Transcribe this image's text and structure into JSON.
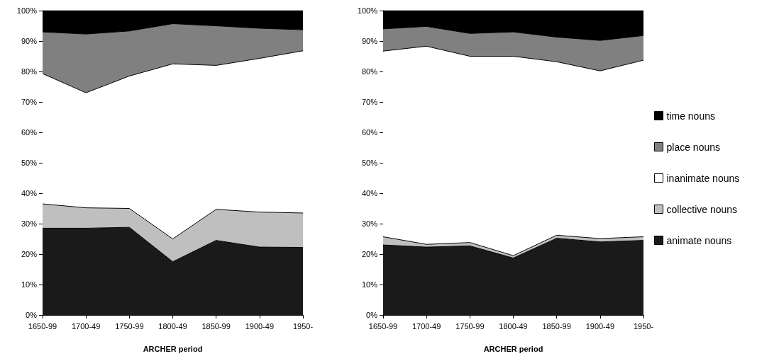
{
  "chart_data": [
    {
      "type": "area",
      "stacked": true,
      "xlabel": "ARCHER period",
      "categories": [
        "1650-99",
        "1700-49",
        "1750-99",
        "1800-49",
        "1850-99",
        "1900-49",
        "1950-"
      ],
      "ylim": [
        0,
        100
      ],
      "yticks": [
        {
          "value": 0,
          "label": "0%"
        },
        {
          "value": 10,
          "label": "10%"
        },
        {
          "value": 20,
          "label": "20%"
        },
        {
          "value": 30,
          "label": "30%"
        },
        {
          "value": 40,
          "label": "40%"
        },
        {
          "value": 50,
          "label": "50%"
        },
        {
          "value": 60,
          "label": "60%"
        },
        {
          "value": 70,
          "label": "70%"
        },
        {
          "value": 80,
          "label": "80%"
        },
        {
          "value": 90,
          "label": "90%"
        },
        {
          "value": 100,
          "label": "100%"
        }
      ],
      "grid": false,
      "legend": false,
      "series": [
        {
          "color": "#1a1a1a",
          "values": [
            28.5,
            28.5,
            28.8,
            17.5,
            24.5,
            22.3,
            22.2
          ]
        },
        {
          "color": "#bfbfbf",
          "values": [
            8.0,
            6.7,
            6.2,
            7.5,
            10.2,
            11.5,
            11.3
          ]
        },
        {
          "color": "#ffffff",
          "values": [
            42.8,
            37.8,
            43.5,
            57.5,
            47.3,
            50.5,
            53.3
          ]
        },
        {
          "color": "#808080",
          "values": [
            13.7,
            19.3,
            14.8,
            13.2,
            13.0,
            9.9,
            6.9
          ]
        },
        {
          "color": "#000000",
          "values": [
            7.0,
            7.7,
            6.7,
            4.3,
            5.0,
            5.8,
            6.3
          ]
        }
      ]
    },
    {
      "type": "area",
      "stacked": true,
      "xlabel": "ARCHER period",
      "categories": [
        "1650-99",
        "1700-49",
        "1750-99",
        "1800-49",
        "1850-99",
        "1900-49",
        "1950-"
      ],
      "ylim": [
        0,
        100
      ],
      "yticks": [
        {
          "value": 0,
          "label": "0%"
        },
        {
          "value": 10,
          "label": "10%"
        },
        {
          "value": 20,
          "label": "20%"
        },
        {
          "value": 30,
          "label": "30%"
        },
        {
          "value": 40,
          "label": "40%"
        },
        {
          "value": 50,
          "label": "50%"
        },
        {
          "value": 60,
          "label": "60%"
        },
        {
          "value": 70,
          "label": "70%"
        },
        {
          "value": 80,
          "label": "80%"
        },
        {
          "value": 90,
          "label": "90%"
        },
        {
          "value": 100,
          "label": "100%"
        }
      ],
      "grid": false,
      "legend": "right",
      "series": [
        {
          "name": "animate nouns",
          "color": "#1a1a1a",
          "values": [
            23.0,
            22.3,
            22.7,
            18.7,
            25.2,
            24.0,
            24.5
          ]
        },
        {
          "name": "collective nouns",
          "color": "#bfbfbf",
          "values": [
            2.7,
            0.9,
            1.1,
            0.8,
            1.0,
            1.1,
            1.2
          ]
        },
        {
          "name": "inanimate nouns",
          "color": "#ffffff",
          "values": [
            61.0,
            65.1,
            61.2,
            65.5,
            57.0,
            55.1,
            58.0
          ]
        },
        {
          "name": "place nouns",
          "color": "#808080",
          "values": [
            7.3,
            6.5,
            7.5,
            8.0,
            8.1,
            10.0,
            8.1
          ]
        },
        {
          "name": "time nouns",
          "color": "#000000",
          "values": [
            6.0,
            5.2,
            7.5,
            7.0,
            8.7,
            9.8,
            8.2
          ]
        }
      ]
    }
  ]
}
